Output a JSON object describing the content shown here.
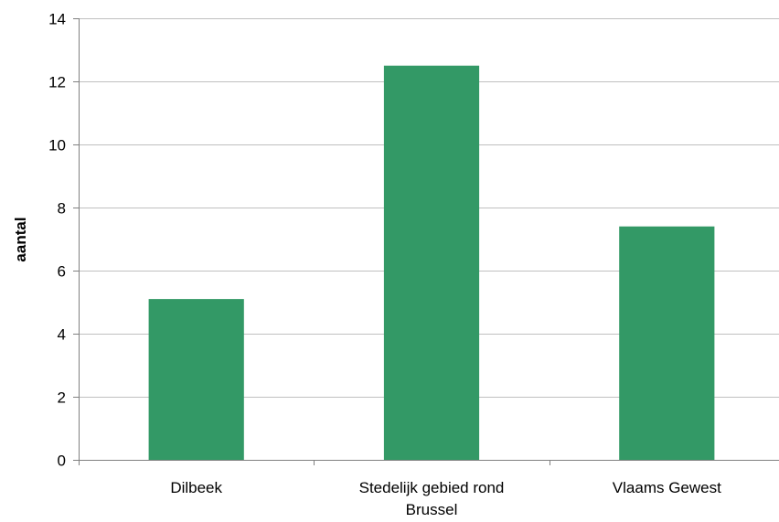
{
  "chart_data": {
    "type": "bar",
    "categories": [
      "Dilbeek",
      "Stedelijk gebied rond Brussel",
      "Vlaams Gewest"
    ],
    "category_lines": [
      [
        "Dilbeek"
      ],
      [
        "Stedelijk gebied rond",
        "Brussel"
      ],
      [
        "Vlaams Gewest"
      ]
    ],
    "values": [
      5.1,
      12.5,
      7.4
    ],
    "title": "",
    "xlabel": "",
    "ylabel": "aantal",
    "ylim": [
      0,
      14
    ],
    "yticks": [
      0,
      2,
      4,
      6,
      8,
      10,
      12,
      14
    ],
    "grid": true,
    "legend": "none",
    "bar_color": "#339966"
  }
}
